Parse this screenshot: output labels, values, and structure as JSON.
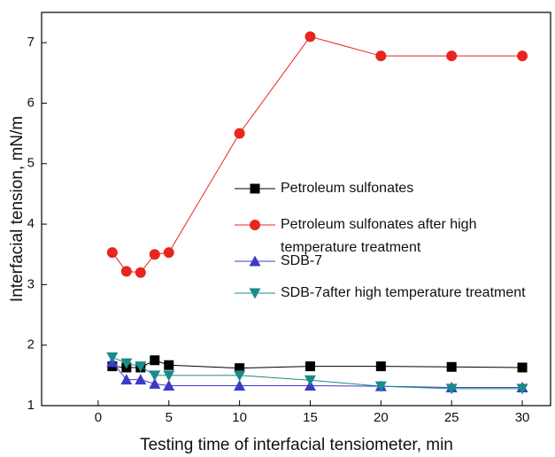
{
  "chart_data": {
    "type": "line",
    "xlabel": "Testing time of interfacial tensiometer, min",
    "ylabel": "Interfacial tension, mN/m",
    "x": [
      1,
      2,
      3,
      4,
      5,
      10,
      15,
      20,
      25,
      30
    ],
    "series": [
      {
        "name": "Petroleum sulfonates",
        "color": "#000000",
        "marker": "square",
        "values": [
          1.65,
          1.63,
          1.63,
          1.75,
          1.67,
          1.62,
          1.65,
          1.65,
          1.64,
          1.63
        ]
      },
      {
        "name": "Petroleum sulfonates after high temperature treatment",
        "color": "#e8251f",
        "marker": "circle",
        "values": [
          3.53,
          3.22,
          3.2,
          3.5,
          3.53,
          5.5,
          7.1,
          6.78,
          6.78,
          6.78
        ]
      },
      {
        "name": "SDB-7",
        "color": "#3b3bc8",
        "marker": "triangle-up",
        "values": [
          1.72,
          1.43,
          1.43,
          1.36,
          1.33,
          1.33,
          1.33,
          1.32,
          1.3,
          1.3
        ]
      },
      {
        "name": "SDB-7after high temperature treatment",
        "color": "#1a8a8a",
        "marker": "triangle-down",
        "values": [
          1.8,
          1.7,
          1.65,
          1.5,
          1.5,
          1.5,
          1.42,
          1.32,
          1.28,
          1.28
        ]
      }
    ],
    "xlim": [
      -4,
      32
    ],
    "xticks": [
      0,
      5,
      10,
      15,
      20,
      25,
      30
    ],
    "ylim": [
      1,
      7.5
    ],
    "yticks": [
      1,
      2,
      3,
      4,
      5,
      6,
      7
    ],
    "grid": false
  }
}
